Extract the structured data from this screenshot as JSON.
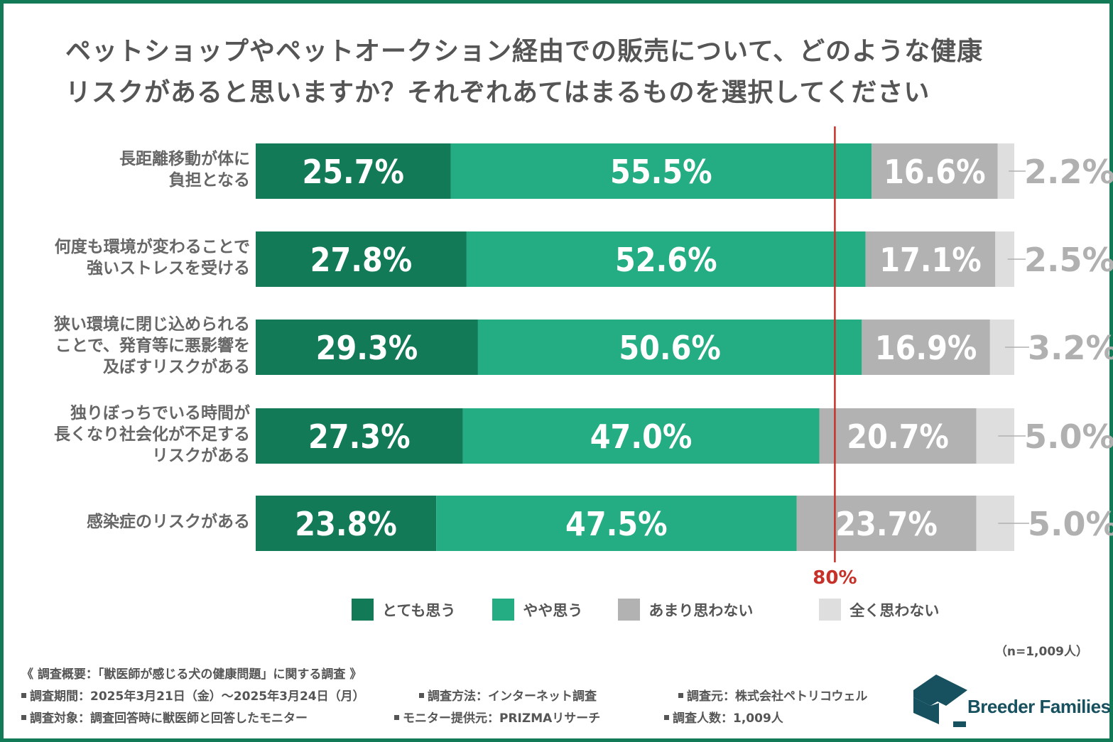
{
  "chart_data": {
    "type": "bar",
    "orientation": "horizontal",
    "stacked": true,
    "title": "ペットショップやペットオークション経由での販売について、どのような健康リスクがあると思いますか？それぞれあてはまるものを選択してください",
    "title_lines": [
      "ペットショップやペットオークション経由での販売について、どのような健康",
      "リスクがあると思いますか？それぞれあてはまるものを選択してください"
    ],
    "xlabel": "",
    "ylabel": "",
    "xlim": [
      0,
      100
    ],
    "unit": "%",
    "grid": false,
    "legend_position": "bottom",
    "categories": [
      "長距離移動が体に負担となる",
      "何度も環境が変わることで強いストレスを受ける",
      "狭い環境に閉じ込められることで、発育等に悪影響を及ぼすリスクがある",
      "独りぼっちでいる時間が長くなり社会化が不足するリスクがある",
      "感染症のリスクがある"
    ],
    "category_lines": [
      [
        "長距離移動が体に",
        "負担となる"
      ],
      [
        "何度も環境が変わることで",
        "強いストレスを受ける"
      ],
      [
        "狭い環境に閉じ込められる",
        "ことで、発育等に悪影響を",
        "及ぼすリスクがある"
      ],
      [
        "独りぼっちでいる時間が",
        "長くなり社会化が不足する",
        "リスクがある"
      ],
      [
        "感染症のリスクがある"
      ]
    ],
    "series": [
      {
        "name": "とても思う",
        "color": "#137a58",
        "values": [
          25.7,
          27.8,
          29.3,
          27.3,
          23.8
        ]
      },
      {
        "name": "やや思う",
        "color": "#24ac82",
        "values": [
          55.5,
          52.6,
          50.6,
          47.0,
          47.5
        ]
      },
      {
        "name": "あまり思わない",
        "color": "#b2b2b2",
        "values": [
          16.6,
          17.1,
          16.9,
          20.7,
          23.7
        ]
      },
      {
        "name": "全く思わない",
        "color": "#dedede",
        "values": [
          2.2,
          2.5,
          3.2,
          5.0,
          5.0
        ]
      }
    ],
    "reference_line": {
      "value": 80,
      "label": "80%",
      "color": "#c6322a"
    },
    "sample_size": "（n=1,009人）"
  },
  "footer": {
    "overview": "《 調査概要：「獣医師が感じる犬の健康問題」に関する調査 》",
    "period": "調査期間：2025年3月21日（金）～2025年3月24日（月）",
    "method": "調査方法：インターネット調査",
    "source": "調査元：株式会社ペトリコウェル",
    "target": "調査対象：調査回答時に獣医師と回答したモニター",
    "provider": "モニター提供元：PRIZMAリサーチ",
    "count": "調査人数：1,009人"
  },
  "logo": {
    "text": "Breeder Families",
    "color": "#17505e"
  },
  "frame_color": "#137a58"
}
